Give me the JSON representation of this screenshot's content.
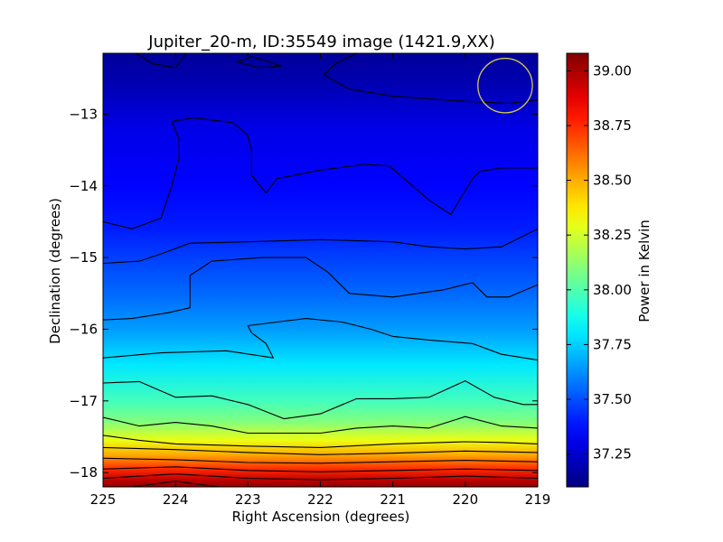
{
  "chart_data": {
    "type": "heatmap",
    "title": "Jupiter_20-m, ID:35549 image (1421.9,XX)",
    "xlabel": "Right Ascension (degrees)",
    "ylabel": "Declination (degrees)",
    "colorbar_label": "Power in Kelvin",
    "colormap": "jet",
    "xlim": [
      225,
      219
    ],
    "ylim": [
      -18.2,
      -12.15
    ],
    "x_ticks": [
      225,
      224,
      223,
      222,
      221,
      220,
      219
    ],
    "x_tick_labels": [
      "225",
      "224",
      "223",
      "222",
      "221",
      "220",
      "219"
    ],
    "y_ticks": [
      -13,
      -14,
      -15,
      -16,
      -17,
      -18
    ],
    "y_tick_labels": [
      "−13",
      "−14",
      "−15",
      "−16",
      "−17",
      "−18"
    ],
    "clim": [
      37.1,
      39.08
    ],
    "colorbar_ticks": [
      37.25,
      37.5,
      37.75,
      38.0,
      38.25,
      38.5,
      38.75,
      39.0
    ],
    "colorbar_tick_labels": [
      "37.25",
      "37.50",
      "37.75",
      "38.00",
      "38.25",
      "38.50",
      "38.75",
      "39.00"
    ],
    "power_profile": [
      {
        "dec": -12.15,
        "power": 37.15
      },
      {
        "dec": -12.6,
        "power": 37.2
      },
      {
        "dec": -13.2,
        "power": 37.3
      },
      {
        "dec": -14.0,
        "power": 37.35
      },
      {
        "dec": -14.6,
        "power": 37.4
      },
      {
        "dec": -15.0,
        "power": 37.47
      },
      {
        "dec": -15.5,
        "power": 37.55
      },
      {
        "dec": -16.0,
        "power": 37.65
      },
      {
        "dec": -16.5,
        "power": 37.8
      },
      {
        "dec": -17.0,
        "power": 37.97
      },
      {
        "dec": -17.3,
        "power": 38.1
      },
      {
        "dec": -17.55,
        "power": 38.3
      },
      {
        "dec": -17.75,
        "power": 38.5
      },
      {
        "dec": -17.95,
        "power": 38.75
      },
      {
        "dec": -18.1,
        "power": 38.95
      },
      {
        "dec": -18.2,
        "power": 39.05
      }
    ],
    "beam_circle": {
      "ra": 219.45,
      "dec": -12.6,
      "radius_deg": 0.38,
      "color": "#d4c84a"
    },
    "contours": [
      [
        [
          224.55,
          -12.15
        ],
        [
          224.3,
          -12.3
        ],
        [
          224.0,
          -12.35
        ],
        [
          223.9,
          -12.22
        ],
        [
          223.85,
          -12.15
        ]
      ],
      [
        [
          222.95,
          -12.2
        ],
        [
          222.7,
          -12.27
        ],
        [
          222.55,
          -12.33
        ],
        [
          222.85,
          -12.35
        ],
        [
          223.15,
          -12.27
        ],
        [
          222.95,
          -12.2
        ]
      ],
      [
        [
          221.5,
          -12.15
        ],
        [
          221.8,
          -12.3
        ],
        [
          221.95,
          -12.45
        ],
        [
          221.6,
          -12.65
        ],
        [
          221.0,
          -12.75
        ],
        [
          220.0,
          -12.82
        ],
        [
          219.4,
          -12.85
        ],
        [
          219.0,
          -12.8
        ]
      ],
      [
        [
          225.0,
          -14.5
        ],
        [
          224.6,
          -14.6
        ],
        [
          224.2,
          -14.45
        ],
        [
          224.05,
          -14.0
        ],
        [
          223.95,
          -13.6
        ],
        [
          223.95,
          -13.35
        ],
        [
          224.05,
          -13.1
        ],
        [
          223.75,
          -13.05
        ],
        [
          223.2,
          -13.12
        ],
        [
          223.0,
          -13.3
        ],
        [
          222.95,
          -13.5
        ],
        [
          222.95,
          -13.85
        ],
        [
          222.75,
          -14.1
        ],
        [
          222.6,
          -13.9
        ],
        [
          222.0,
          -13.78
        ],
        [
          221.4,
          -13.7
        ],
        [
          221.05,
          -13.72
        ],
        [
          220.5,
          -14.2
        ],
        [
          220.2,
          -14.4
        ],
        [
          219.9,
          -13.9
        ],
        [
          219.8,
          -13.8
        ],
        [
          219.5,
          -13.75
        ],
        [
          219.0,
          -13.75
        ]
      ],
      [
        [
          225.0,
          -15.08
        ],
        [
          224.5,
          -15.05
        ],
        [
          224.2,
          -14.95
        ],
        [
          223.8,
          -14.8
        ],
        [
          223.0,
          -14.78
        ],
        [
          222.0,
          -14.75
        ],
        [
          221.0,
          -14.78
        ],
        [
          220.5,
          -14.85
        ],
        [
          220.0,
          -14.88
        ],
        [
          219.5,
          -14.85
        ],
        [
          219.0,
          -14.6
        ]
      ],
      [
        [
          225.0,
          -15.87
        ],
        [
          224.6,
          -15.85
        ],
        [
          224.1,
          -15.77
        ],
        [
          223.8,
          -15.7
        ],
        [
          223.8,
          -15.25
        ],
        [
          223.5,
          -15.05
        ],
        [
          222.8,
          -15.0
        ],
        [
          222.2,
          -15.0
        ],
        [
          221.9,
          -15.2
        ],
        [
          221.6,
          -15.5
        ],
        [
          221.0,
          -15.55
        ],
        [
          220.3,
          -15.45
        ],
        [
          219.9,
          -15.35
        ],
        [
          219.7,
          -15.55
        ],
        [
          219.4,
          -15.55
        ],
        [
          219.0,
          -15.38
        ]
      ],
      [
        [
          225.0,
          -16.4
        ],
        [
          224.2,
          -16.33
        ],
        [
          223.3,
          -16.3
        ],
        [
          222.65,
          -16.4
        ],
        [
          222.75,
          -16.2
        ],
        [
          222.95,
          -16.05
        ],
        [
          223.0,
          -15.95
        ],
        [
          222.6,
          -15.9
        ],
        [
          222.2,
          -15.85
        ],
        [
          221.7,
          -15.9
        ],
        [
          221.3,
          -16.0
        ],
        [
          221.0,
          -16.1
        ],
        [
          220.5,
          -16.15
        ],
        [
          219.9,
          -16.2
        ],
        [
          219.5,
          -16.35
        ],
        [
          219.0,
          -16.43
        ]
      ],
      [
        [
          225.0,
          -16.75
        ],
        [
          224.5,
          -16.73
        ],
        [
          224.0,
          -16.95
        ],
        [
          223.5,
          -16.93
        ],
        [
          223.0,
          -17.05
        ],
        [
          222.5,
          -17.25
        ],
        [
          222.0,
          -17.18
        ],
        [
          221.5,
          -16.97
        ],
        [
          221.0,
          -16.97
        ],
        [
          220.5,
          -16.95
        ],
        [
          220.0,
          -16.72
        ],
        [
          219.6,
          -16.95
        ],
        [
          219.2,
          -17.05
        ],
        [
          219.0,
          -17.05
        ]
      ],
      [
        [
          225.0,
          -17.23
        ],
        [
          224.5,
          -17.35
        ],
        [
          224.0,
          -17.3
        ],
        [
          223.5,
          -17.35
        ],
        [
          223.0,
          -17.45
        ],
        [
          222.0,
          -17.45
        ],
        [
          221.5,
          -17.38
        ],
        [
          221.0,
          -17.35
        ],
        [
          220.5,
          -17.38
        ],
        [
          220.0,
          -17.22
        ],
        [
          219.5,
          -17.35
        ],
        [
          219.0,
          -17.38
        ]
      ],
      [
        [
          225.0,
          -17.48
        ],
        [
          224.5,
          -17.55
        ],
        [
          224.0,
          -17.6
        ],
        [
          223.0,
          -17.63
        ],
        [
          222.0,
          -17.65
        ],
        [
          221.0,
          -17.6
        ],
        [
          220.0,
          -17.57
        ],
        [
          219.5,
          -17.58
        ],
        [
          219.0,
          -17.6
        ]
      ],
      [
        [
          225.0,
          -17.65
        ],
        [
          224.0,
          -17.68
        ],
        [
          223.0,
          -17.72
        ],
        [
          222.0,
          -17.75
        ],
        [
          221.0,
          -17.73
        ],
        [
          220.0,
          -17.7
        ],
        [
          219.0,
          -17.72
        ]
      ],
      [
        [
          225.0,
          -17.8
        ],
        [
          224.0,
          -17.82
        ],
        [
          223.0,
          -17.86
        ],
        [
          222.0,
          -17.87
        ],
        [
          221.0,
          -17.85
        ],
        [
          220.0,
          -17.83
        ],
        [
          219.0,
          -17.85
        ]
      ],
      [
        [
          225.0,
          -17.95
        ],
        [
          224.0,
          -17.92
        ],
        [
          223.0,
          -17.97
        ],
        [
          222.0,
          -17.99
        ],
        [
          221.0,
          -17.97
        ],
        [
          220.0,
          -17.95
        ],
        [
          219.0,
          -17.97
        ]
      ],
      [
        [
          225.0,
          -18.08
        ],
        [
          224.0,
          -18.02
        ],
        [
          223.0,
          -18.08
        ],
        [
          222.0,
          -18.1
        ],
        [
          221.0,
          -18.08
        ],
        [
          220.0,
          -18.05
        ],
        [
          219.0,
          -18.08
        ]
      ],
      [
        [
          224.6,
          -18.2
        ],
        [
          224.0,
          -18.12
        ],
        [
          223.4,
          -18.2
        ]
      ]
    ]
  }
}
